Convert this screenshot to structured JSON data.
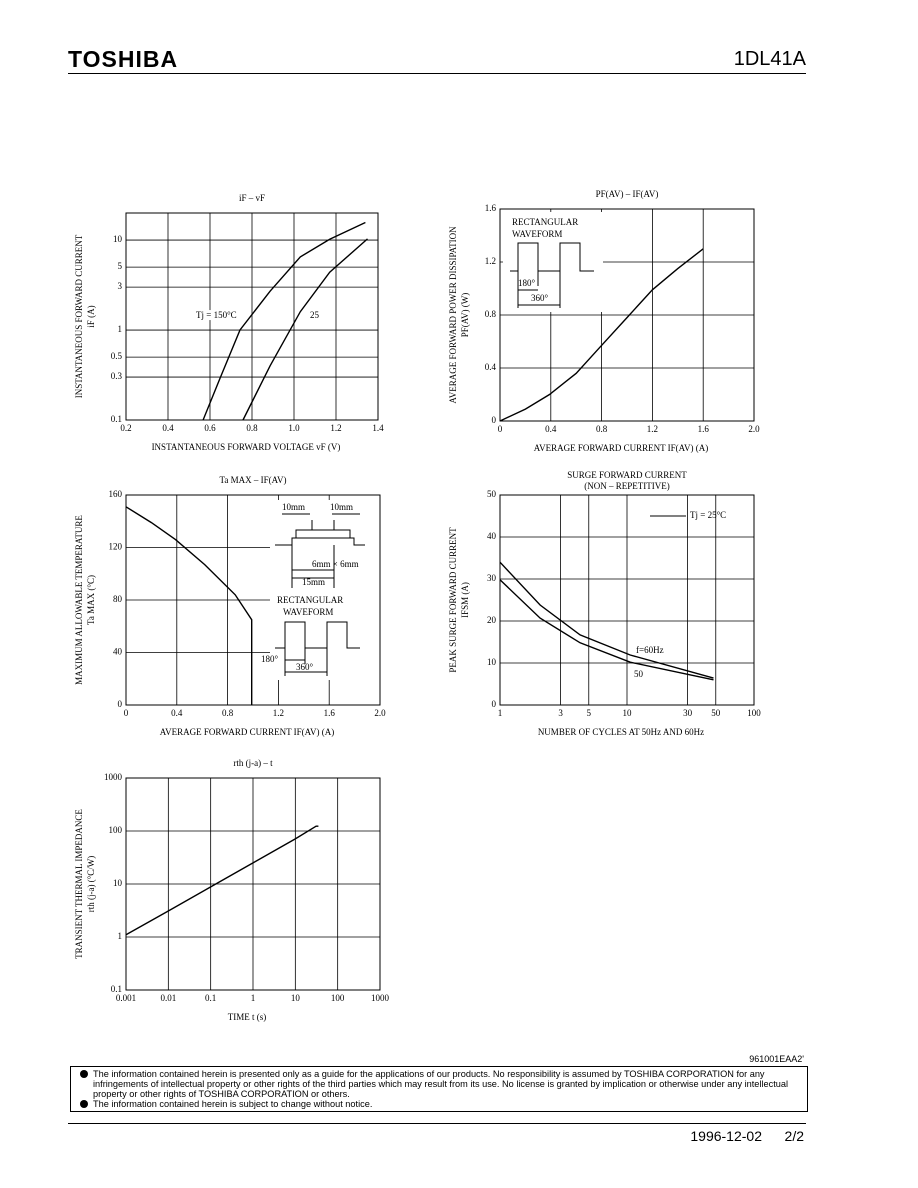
{
  "header": {
    "brand": "TOSHIBA",
    "part": "1DL41A"
  },
  "chart_data": [
    {
      "type": "line",
      "title": "iF – vF",
      "xlabel": "INSTANTANEOUS FORWARD VOLTAGE vF (V)",
      "ylabel": [
        "INSTANTANEOUS FORWARD CURRENT",
        "iF (A)"
      ],
      "xlim": [
        0.2,
        1.4
      ],
      "xticks": [
        0.2,
        0.4,
        0.6,
        0.8,
        {
          "value": 1,
          "label": "1.0"
        },
        1.2,
        1.4
      ],
      "ylim": [
        0.1,
        20
      ],
      "yticks": [
        0.1,
        0.3,
        0.5,
        1,
        3,
        5,
        10
      ],
      "ylog": true,
      "grid": true,
      "series": [
        {
          "name": "Tj = 150°C",
          "color": "#000000",
          "x": [
            0.567,
            0.65,
            0.743,
            0.886,
            1.03,
            1.17,
            1.34
          ],
          "values": [
            0.1,
            0.3,
            1,
            2.7,
            6.5,
            10.2,
            15.7
          ]
        },
        {
          "name": "25",
          "color": "#000000",
          "x": [
            0.757,
            0.886,
            1.03,
            1.17,
            1.35
          ],
          "values": [
            0.1,
            0.4,
            1.6,
            4.4,
            10.3
          ]
        }
      ]
    },
    {
      "type": "line",
      "title": "PF(AV) – IF(AV)",
      "xlabel": "AVERAGE FORWARD CURRENT IF(AV) (A)",
      "ylabel": [
        "AVERAGE FORWARD POWER DISSIPATION",
        "PF(AV) (W)"
      ],
      "xlim": [
        0,
        2
      ],
      "xticks": [
        0,
        0.4,
        0.8,
        1.2,
        1.6,
        {
          "value": 2,
          "label": "2.0"
        }
      ],
      "ylim": [
        0,
        1.6
      ],
      "yticks": [
        0,
        0.4,
        0.8,
        1.2,
        1.6
      ],
      "grid": true,
      "color": "#000000",
      "x": [
        0,
        0.2,
        0.39,
        0.6,
        0.79,
        1.0,
        1.2,
        1.4,
        1.6
      ],
      "values": [
        0,
        0.09,
        0.2,
        0.36,
        0.56,
        0.78,
        0.99,
        1.15,
        1.3
      ],
      "annotations": [
        "RECTANGULAR",
        "WAVEFORM",
        "180°",
        "360°"
      ]
    },
    {
      "type": "line",
      "title": "Ta MAX – IF(AV)",
      "xlabel": "AVERAGE FORWARD CURRENT IF(AV) (A)",
      "ylabel": [
        "MAXIMUM ALLOWABLE TEMPERATURE",
        "Ta MAX (°C)"
      ],
      "xlim": [
        0,
        2
      ],
      "xticks": [
        0,
        0.4,
        0.8,
        1.2,
        1.6,
        {
          "value": 2,
          "label": "2.0"
        }
      ],
      "ylim": [
        0,
        160
      ],
      "yticks": [
        0,
        40,
        80,
        120,
        160
      ],
      "grid": true,
      "color": "#000000",
      "x": [
        0,
        0.2,
        0.39,
        0.62,
        0.86,
        0.99,
        0.99
      ],
      "values": [
        151,
        139,
        126,
        107,
        84,
        65,
        0
      ],
      "annotations": [
        "10mm",
        "10mm",
        "6mm × 6mm",
        "15mm",
        "RECTANGULAR",
        "WAVEFORM",
        "180°",
        "360°"
      ]
    },
    {
      "type": "line",
      "title": "SURGE FORWARD CURRENT",
      "subtitle": "(NON – REPETITIVE)",
      "xlabel": "NUMBER OF CYCLES AT 50Hz AND 60Hz",
      "ylabel": [
        "PEAK SURGE FORWARD CURRENT",
        "IFSM (A)"
      ],
      "xlim": [
        1,
        100
      ],
      "xticks": [
        1,
        3,
        5,
        10,
        30,
        50,
        100
      ],
      "xlog": true,
      "ylim": [
        0,
        50
      ],
      "yticks": [
        0,
        10,
        20,
        30,
        40,
        50
      ],
      "grid": true,
      "series": [
        {
          "name": "f=60Hz",
          "color": "#000000",
          "x": [
            1,
            2.07,
            4.27,
            10.6,
            48
          ],
          "values": [
            34,
            23.8,
            16.7,
            11.9,
            6.4
          ]
        },
        {
          "name": "50",
          "color": "#000000",
          "x": [
            1,
            2.07,
            4.27,
            10.6,
            48
          ],
          "values": [
            29.8,
            20.7,
            14.8,
            10.2,
            6
          ]
        }
      ],
      "annotations": [
        "Tj = 25°C"
      ]
    },
    {
      "type": "line",
      "title": "rth (j-a) – t",
      "xlabel": "TIME t (s)",
      "ylabel": [
        "TRANSIENT THERMAL IMPEDANCE",
        "rth (j-a) (°C/W)"
      ],
      "xlim": [
        0.001,
        1000
      ],
      "xticks": [
        0.001,
        0.01,
        0.1,
        1,
        10,
        100,
        1000
      ],
      "xlog": true,
      "ylim": [
        0.1,
        1000
      ],
      "yticks": [
        0.1,
        1,
        10,
        100,
        1000
      ],
      "ylog": true,
      "grid": true,
      "color": "#000000",
      "x": [
        0.001,
        0.01,
        0.1,
        1,
        10,
        31,
        35
      ],
      "values": [
        1.1,
        3.1,
        8.8,
        25,
        71,
        123,
        123
      ]
    }
  ],
  "footer": {
    "code": "961001EAA2'",
    "notices": [
      "The information contained herein is presented only as a guide for the applications of our products. No responsibility is assumed by TOSHIBA CORPORATION for any infringements of intellectual property or other rights of the third parties which may result from its use. No license is granted by implication or otherwise under any intellectual property or other rights of TOSHIBA CORPORATION or others.",
      "The information contained herein is subject to change without notice."
    ],
    "date": "1996-12-02",
    "page": "2/2"
  }
}
